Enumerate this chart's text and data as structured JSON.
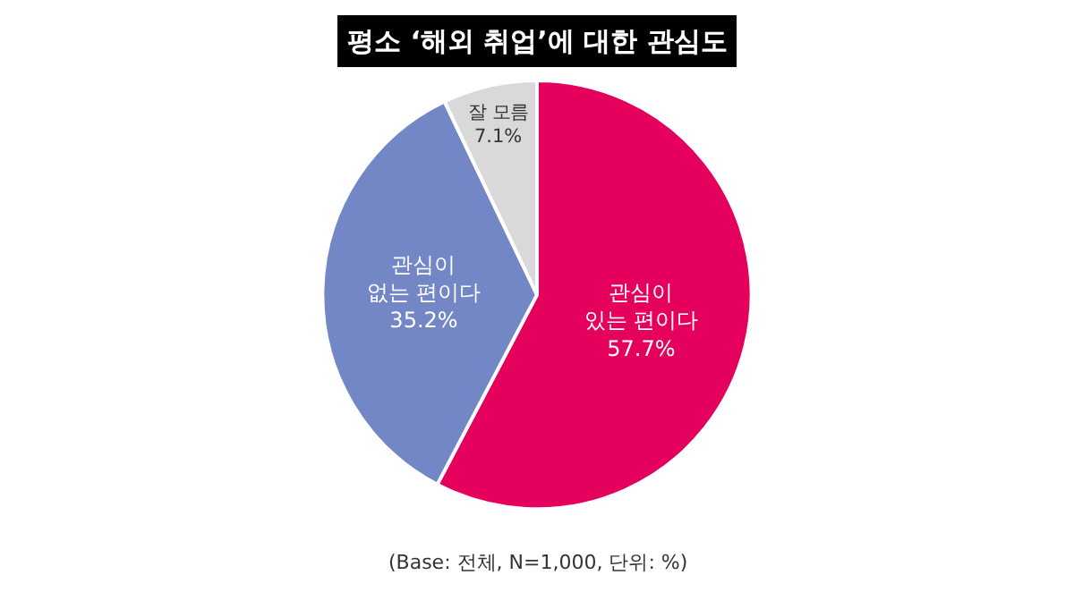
{
  "chart_data": {
    "type": "pie",
    "title": "평소 ‘해외 취업’에 대한 관심도",
    "categories": [
      "관심이\n있는 편이다",
      "관심이\n없는 편이다",
      "잘 모름"
    ],
    "values": [
      57.7,
      35.2,
      7.1
    ],
    "colors": [
      "#e4005c",
      "#7386c6",
      "#d9d9d9"
    ],
    "value_labels": [
      "57.7%",
      "35.2%",
      "7.1%"
    ],
    "legend": false,
    "annotations": [
      "(Base: 전체, N=1,000, 단위: %)"
    ]
  }
}
